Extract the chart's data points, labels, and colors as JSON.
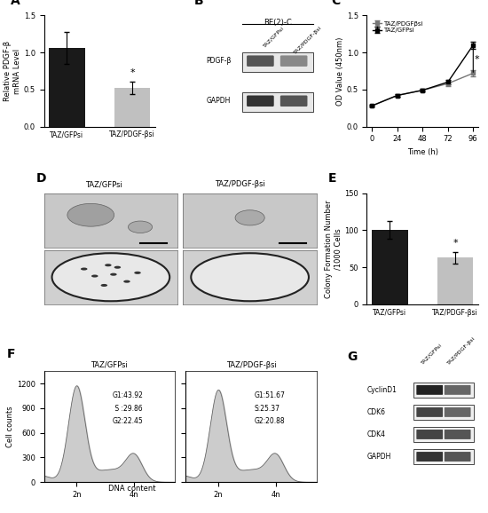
{
  "panel_A": {
    "categories": [
      "TAZ/GFPsi",
      "TAZ/PDGF-βsi"
    ],
    "values": [
      1.06,
      0.52
    ],
    "errors": [
      0.22,
      0.08
    ],
    "bar_colors": [
      "#1a1a1a",
      "#c0c0c0"
    ],
    "ylabel": "Relative PDGF-β\nmRNA Level",
    "ylim": [
      0,
      1.5
    ],
    "yticks": [
      0,
      0.5,
      1.0,
      1.5
    ],
    "star_text": "*",
    "panel_label": "A"
  },
  "panel_B": {
    "panel_label": "B",
    "title": "BE(2)-C",
    "col1": "TAZ/GFPsi",
    "col2": "TAZ/PDGF-βsi",
    "row1": "PDGF-β",
    "row2": "GAPDH",
    "band1_left_color": "#555555",
    "band1_right_color": "#888888",
    "band2_left_color": "#333333",
    "band2_right_color": "#555555"
  },
  "panel_C": {
    "time": [
      0,
      24,
      48,
      72,
      96
    ],
    "TAZ_GFPsi": [
      0.28,
      0.42,
      0.49,
      0.6,
      1.1
    ],
    "TAZ_PDGFbsi": [
      0.28,
      0.42,
      0.49,
      0.58,
      0.72
    ],
    "TAZ_GFPsi_err": [
      0.01,
      0.02,
      0.02,
      0.03,
      0.05
    ],
    "TAZ_PDGFbsi_err": [
      0.01,
      0.02,
      0.02,
      0.03,
      0.04
    ],
    "xlabel": "Time (h)",
    "ylabel": "OD Value (450nm)",
    "ylim": [
      0,
      1.5
    ],
    "yticks": [
      0,
      0.5,
      1.0,
      1.5
    ],
    "xticks": [
      0,
      24,
      48,
      72,
      96
    ],
    "legend_pdgf": "TAZ/PDGFβsi",
    "legend_gfp": "TAZ/GFPsi",
    "star_text": "*",
    "panel_label": "C"
  },
  "panel_E": {
    "categories": [
      "TAZ/GFPsi",
      "TAZ/PDGF-βsi"
    ],
    "values": [
      100,
      63
    ],
    "errors": [
      12,
      8
    ],
    "bar_colors": [
      "#1a1a1a",
      "#c0c0c0"
    ],
    "ylabel": "Colony Formation Number\n/1000 Cells",
    "ylim": [
      0,
      150
    ],
    "yticks": [
      0,
      50,
      100,
      150
    ],
    "star_text": "*",
    "panel_label": "E"
  },
  "panel_F": {
    "panel_label": "F",
    "left_label": "TAZ/GFPsi",
    "right_label": "TAZ/PDGF-βsi",
    "left_stats": "G1:43.92\n S :29.86\nG2:22.45",
    "right_stats": "G1:51.67\nS:25.37\nG2:20.88",
    "xlabel": "DNA content",
    "ylabel": "Cell counts",
    "ylim": [
      0,
      1350
    ],
    "yticks": [
      0,
      300,
      600,
      900,
      1200
    ],
    "xtick_labels": [
      "2n",
      "4n"
    ]
  },
  "panel_G": {
    "panel_label": "G",
    "col1": "TAZ/GFPsi",
    "col2": "TAZ/PDGF-βsi",
    "band_labels": [
      "CyclinD1",
      "CDK6",
      "CDK4",
      "GAPDH"
    ],
    "left_colors": [
      "#222222",
      "#444444",
      "#444444",
      "#333333"
    ],
    "right_colors": [
      "#666666",
      "#666666",
      "#555555",
      "#555555"
    ]
  },
  "background_color": "#ffffff"
}
